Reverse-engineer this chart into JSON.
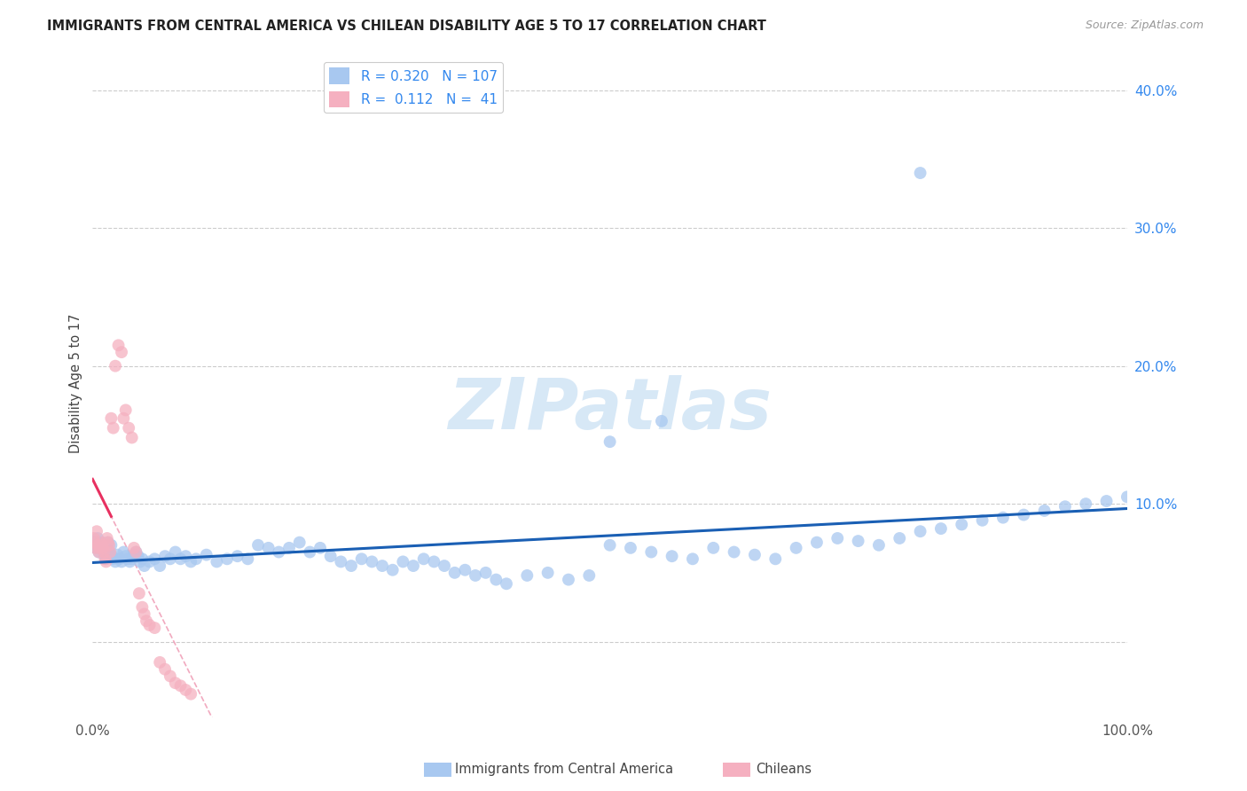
{
  "title": "IMMIGRANTS FROM CENTRAL AMERICA VS CHILEAN DISABILITY AGE 5 TO 17 CORRELATION CHART",
  "source": "Source: ZipAtlas.com",
  "ylabel": "Disability Age 5 to 17",
  "xlim": [
    0.0,
    1.0
  ],
  "ylim": [
    -0.055,
    0.43
  ],
  "yticks": [
    0.0,
    0.1,
    0.2,
    0.3,
    0.4
  ],
  "ytick_labels": [
    "",
    "10.0%",
    "20.0%",
    "30.0%",
    "40.0%"
  ],
  "xticks": [
    0.0,
    0.2,
    0.4,
    0.6,
    0.8,
    1.0
  ],
  "xtick_labels": [
    "0.0%",
    "",
    "",
    "",
    "",
    "100.0%"
  ],
  "legend_blue_r": "0.320",
  "legend_blue_n": "107",
  "legend_pink_r": "0.112",
  "legend_pink_n": " 41",
  "blue_color": "#a8c8f0",
  "pink_color": "#f5b0c0",
  "blue_line_color": "#1a5fb4",
  "pink_line_color": "#e83060",
  "pink_dash_color": "#f0a0b8",
  "blue_dash_color": "#b0d0f0",
  "watermark_color": "#d0e4f5",
  "blue_scatter_x": [
    0.002,
    0.003,
    0.004,
    0.005,
    0.006,
    0.007,
    0.008,
    0.009,
    0.01,
    0.011,
    0.012,
    0.013,
    0.014,
    0.015,
    0.016,
    0.017,
    0.018,
    0.019,
    0.02,
    0.022,
    0.024,
    0.026,
    0.028,
    0.03,
    0.032,
    0.034,
    0.036,
    0.038,
    0.04,
    0.042,
    0.044,
    0.046,
    0.048,
    0.05,
    0.055,
    0.06,
    0.065,
    0.07,
    0.075,
    0.08,
    0.085,
    0.09,
    0.095,
    0.1,
    0.11,
    0.12,
    0.13,
    0.14,
    0.15,
    0.16,
    0.17,
    0.18,
    0.19,
    0.2,
    0.21,
    0.22,
    0.23,
    0.24,
    0.25,
    0.26,
    0.27,
    0.28,
    0.29,
    0.3,
    0.31,
    0.32,
    0.33,
    0.34,
    0.35,
    0.36,
    0.37,
    0.38,
    0.39,
    0.4,
    0.42,
    0.44,
    0.46,
    0.48,
    0.5,
    0.52,
    0.54,
    0.56,
    0.58,
    0.6,
    0.62,
    0.64,
    0.66,
    0.68,
    0.7,
    0.72,
    0.74,
    0.76,
    0.78,
    0.8,
    0.82,
    0.84,
    0.86,
    0.88,
    0.9,
    0.92,
    0.94,
    0.96,
    0.98,
    1.0,
    0.5,
    0.55,
    0.8
  ],
  "blue_scatter_y": [
    0.072,
    0.068,
    0.07,
    0.075,
    0.065,
    0.068,
    0.07,
    0.072,
    0.068,
    0.065,
    0.062,
    0.06,
    0.068,
    0.072,
    0.065,
    0.063,
    0.07,
    0.062,
    0.06,
    0.058,
    0.063,
    0.06,
    0.058,
    0.065,
    0.062,
    0.06,
    0.058,
    0.06,
    0.063,
    0.065,
    0.062,
    0.058,
    0.06,
    0.055,
    0.058,
    0.06,
    0.055,
    0.062,
    0.06,
    0.065,
    0.06,
    0.062,
    0.058,
    0.06,
    0.063,
    0.058,
    0.06,
    0.062,
    0.06,
    0.07,
    0.068,
    0.065,
    0.068,
    0.072,
    0.065,
    0.068,
    0.062,
    0.058,
    0.055,
    0.06,
    0.058,
    0.055,
    0.052,
    0.058,
    0.055,
    0.06,
    0.058,
    0.055,
    0.05,
    0.052,
    0.048,
    0.05,
    0.045,
    0.042,
    0.048,
    0.05,
    0.045,
    0.048,
    0.07,
    0.068,
    0.065,
    0.062,
    0.06,
    0.068,
    0.065,
    0.063,
    0.06,
    0.068,
    0.072,
    0.075,
    0.073,
    0.07,
    0.075,
    0.08,
    0.082,
    0.085,
    0.088,
    0.09,
    0.092,
    0.095,
    0.098,
    0.1,
    0.102,
    0.105,
    0.145,
    0.16,
    0.34
  ],
  "pink_scatter_x": [
    0.001,
    0.002,
    0.003,
    0.004,
    0.005,
    0.006,
    0.007,
    0.008,
    0.009,
    0.01,
    0.011,
    0.012,
    0.013,
    0.014,
    0.015,
    0.016,
    0.017,
    0.018,
    0.02,
    0.022,
    0.025,
    0.028,
    0.03,
    0.032,
    0.035,
    0.038,
    0.04,
    0.042,
    0.045,
    0.048,
    0.05,
    0.052,
    0.055,
    0.06,
    0.065,
    0.07,
    0.075,
    0.08,
    0.085,
    0.09,
    0.095
  ],
  "pink_scatter_y": [
    0.075,
    0.072,
    0.068,
    0.08,
    0.07,
    0.065,
    0.068,
    0.072,
    0.07,
    0.068,
    0.065,
    0.06,
    0.058,
    0.075,
    0.072,
    0.07,
    0.065,
    0.162,
    0.155,
    0.2,
    0.215,
    0.21,
    0.162,
    0.168,
    0.155,
    0.148,
    0.068,
    0.065,
    0.035,
    0.025,
    0.02,
    0.015,
    0.012,
    0.01,
    -0.015,
    -0.02,
    -0.025,
    -0.03,
    -0.032,
    -0.035,
    -0.038
  ]
}
